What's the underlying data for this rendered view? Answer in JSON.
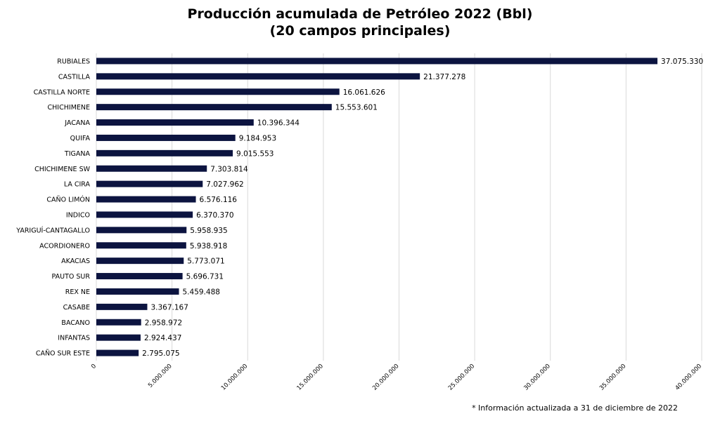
{
  "chart_data": {
    "type": "bar",
    "orientation": "horizontal",
    "title": "Producción acumulada de Petróleo 2022 (Bbl)",
    "subtitle": "(20 campos principales)",
    "categories": [
      "RUBIALES",
      "CASTILLA",
      "CASTILLA NORTE",
      "CHICHIMENE",
      "JACANA",
      "QUIFA",
      "TIGANA",
      "CHICHIMENE SW",
      "LA CIRA",
      "CAÑO LIMÓN",
      "INDICO",
      "YARIGUÍ-CANTAGALLO",
      "ACORDIONERO",
      "AKACIAS",
      "PAUTO SUR",
      "REX NE",
      "CASABE",
      "BACANO",
      "INFANTAS",
      "CAÑO SUR ESTE"
    ],
    "values": [
      37075330,
      21377278,
      16061626,
      15553601,
      10396344,
      9184953,
      9015553,
      7303814,
      7027962,
      6576116,
      6370370,
      5958935,
      5938918,
      5773071,
      5696731,
      5459488,
      3367167,
      2958972,
      2924437,
      2795075
    ],
    "value_labels": [
      "37.075.330",
      "21.377.278",
      "16.061.626",
      "15.553.601",
      "10.396.344",
      "9.184.953",
      "9.015.553",
      "7.303.814",
      "7.027.962",
      "6.576.116",
      "6.370.370",
      "5.958.935",
      "5.938.918",
      "5.773.071",
      "5.696.731",
      "5.459.488",
      "3.367.167",
      "2.958.972",
      "2.924.437",
      "2.795.075"
    ],
    "xlim": [
      0,
      40000000
    ],
    "xticks": [
      0,
      5000000,
      10000000,
      15000000,
      20000000,
      25000000,
      30000000,
      35000000,
      40000000
    ],
    "xtick_labels": [
      "0",
      "5.000.000",
      "10.000.000",
      "15.000.000",
      "20.000.000",
      "25.000.000",
      "30.000.000",
      "35.000.000",
      "40.000.000"
    ],
    "grid": true,
    "bar_color": "#0c1440"
  },
  "footnote": "* Información actualizada a 31 de diciembre de 2022"
}
